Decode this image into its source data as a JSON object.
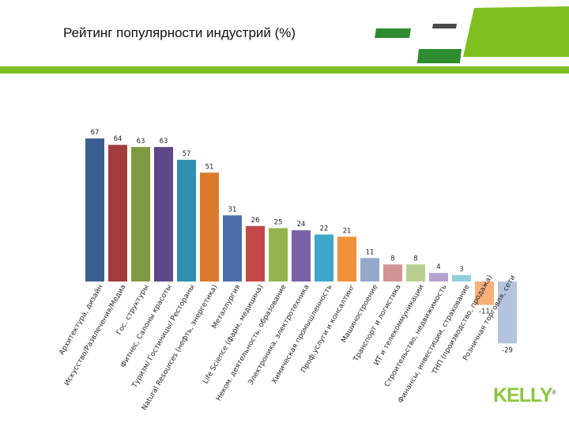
{
  "page": {
    "title": "Рейтинг популярности индустрий (%)",
    "logo_text": "KELLY",
    "logo_mark": "®",
    "accent_color": "#7fbf1f",
    "dark_green": "#2e8b2e"
  },
  "chart_data": {
    "type": "bar",
    "title": "Рейтинг популярности индустрий (%)",
    "categories": [
      "Архитектура, дизайн",
      "Искусство/Развлечения/Медиа",
      "Гос. структуры",
      "Фитнес, Салоны красоты",
      "Туризм/ Гостиницы/ Рестораны",
      "Natural Resources (нефть, энергетика)",
      "Металлургия",
      "Life Science (фарм, медицина)",
      "Неком. деятельность, образование",
      "Электроника, электротехника",
      "Химическая промышленность",
      "Проф.услуги и консалтинг",
      "Машиностроение",
      "Транспорт и логистика",
      "ИТ и телекоммуникации",
      "Строительство, недвижимость",
      "Финансы, инвестиции, страхование",
      "ТНП (производство, продажа)",
      "Розничная торговля, сети"
    ],
    "values": [
      67,
      64,
      63,
      63,
      57,
      51,
      31,
      26,
      25,
      24,
      22,
      21,
      11,
      8,
      8,
      4,
      3,
      -11,
      -29
    ],
    "colors": [
      "#3a5f8f",
      "#a23c3c",
      "#7f9a40",
      "#5e4888",
      "#2f8fb0",
      "#d97a2a",
      "#4a6fa8",
      "#c24848",
      "#93b54c",
      "#7a62a8",
      "#3ea8c8",
      "#f0923a",
      "#94a8cc",
      "#d49494",
      "#b8cf8e",
      "#b3a3cc",
      "#92cde0",
      "#f7b07a",
      "#b4c4de"
    ],
    "ylim": [
      -35,
      75
    ],
    "grid": false,
    "legend": "none",
    "show_data_labels": true
  }
}
